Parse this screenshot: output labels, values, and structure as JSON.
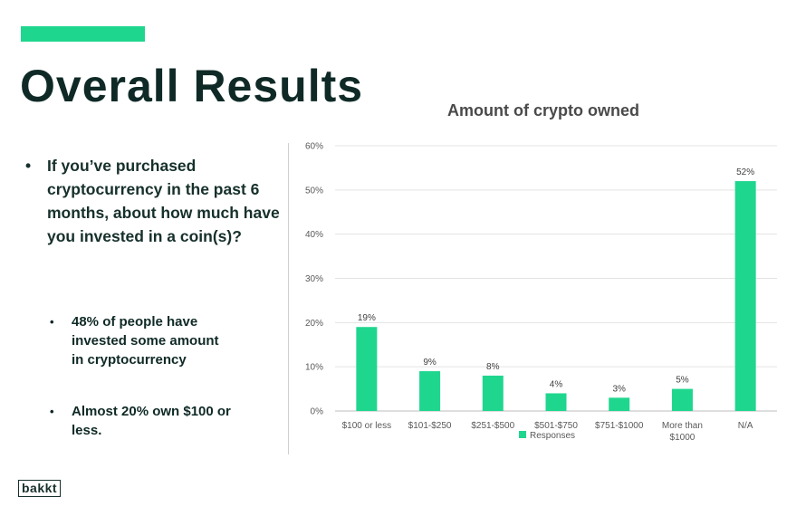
{
  "slide": {
    "title": "Overall Results",
    "question": "If you’ve purchased cryptocurrency in the past 6 months, about how much have you invested in a coin(s)?",
    "bullets": [
      "48% of people have invested some amount in cryptocurrency",
      "Almost 20% own $100 or less."
    ],
    "logo_text": "bakkt",
    "accent_color": "#1fd68e"
  },
  "chart_data": {
    "type": "bar",
    "title": "Amount of crypto owned",
    "categories": [
      "$100 or less",
      "$101-$250",
      "$251-$500",
      "$501-$750",
      "$751-$1000",
      "More than $1000",
      "N/A"
    ],
    "series": [
      {
        "name": "Responses",
        "values": [
          19,
          9,
          8,
          4,
          3,
          5,
          52
        ],
        "color": "#1fd68e"
      }
    ],
    "data_labels": [
      "19%",
      "9%",
      "8%",
      "4%",
      "3%",
      "5%",
      "52%"
    ],
    "yticks": [
      "0%",
      "10%",
      "20%",
      "30%",
      "40%",
      "50%",
      "60%"
    ],
    "ylim": [
      0,
      60
    ],
    "grid": true,
    "legend": "bottom"
  }
}
